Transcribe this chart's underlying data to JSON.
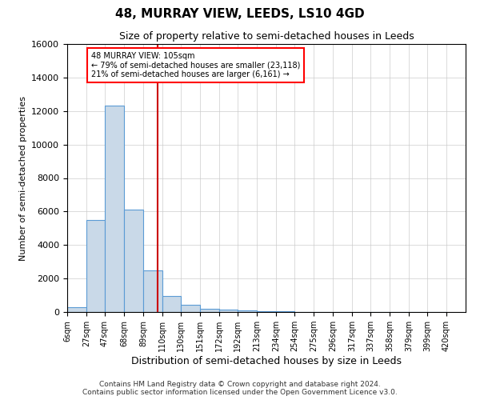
{
  "title": "48, MURRAY VIEW, LEEDS, LS10 4GD",
  "subtitle": "Size of property relative to semi-detached houses in Leeds",
  "xlabel": "Distribution of semi-detached houses by size in Leeds",
  "ylabel": "Number of semi-detached properties",
  "bar_color": "#c9d9e8",
  "bar_edge_color": "#5b9bd5",
  "vline_color": "#cc0000",
  "vline_x": 105,
  "categories": [
    "6sqm",
    "27sqm",
    "47sqm",
    "68sqm",
    "89sqm",
    "110sqm",
    "130sqm",
    "151sqm",
    "172sqm",
    "192sqm",
    "213sqm",
    "234sqm",
    "254sqm",
    "275sqm",
    "296sqm",
    "317sqm",
    "337sqm",
    "358sqm",
    "379sqm",
    "399sqm",
    "420sqm"
  ],
  "bin_edges": [
    6,
    27,
    47,
    68,
    89,
    110,
    130,
    151,
    172,
    192,
    213,
    234,
    254,
    275,
    296,
    317,
    337,
    358,
    379,
    399,
    420
  ],
  "bar_heights": [
    300,
    5500,
    12300,
    6100,
    2500,
    950,
    450,
    200,
    150,
    100,
    70,
    40,
    20,
    10,
    5,
    0,
    0,
    0,
    0,
    0
  ],
  "ylim": [
    0,
    16000
  ],
  "yticks": [
    0,
    2000,
    4000,
    6000,
    8000,
    10000,
    12000,
    14000,
    16000
  ],
  "annotation_title": "48 MURRAY VIEW: 105sqm",
  "annotation_line1": "← 79% of semi-detached houses are smaller (23,118)",
  "annotation_line2": "21% of semi-detached houses are larger (6,161) →",
  "footer1": "Contains HM Land Registry data © Crown copyright and database right 2024.",
  "footer2": "Contains public sector information licensed under the Open Government Licence v3.0.",
  "grid_color": "#cccccc",
  "background_color": "#ffffff"
}
